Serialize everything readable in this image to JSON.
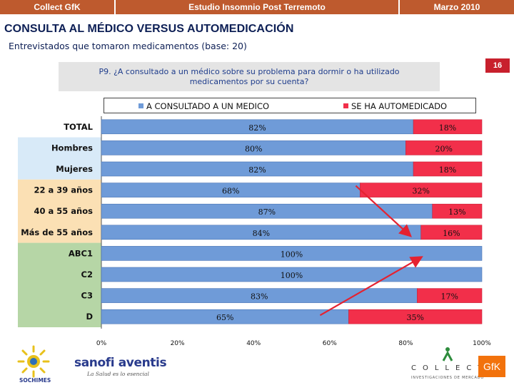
{
  "header": {
    "left": "Collect GfK",
    "center": "Estudio Insomnio Post Terremoto",
    "right": "Marzo 2010"
  },
  "title": "CONSULTA AL MÉDICO VERSUS AUTOMEDICACIÓN",
  "subtitle": "Entrevistados que tomaron medicamentos (base: 20)",
  "page_number": "16",
  "question": {
    "line1": "P9. ¿A consultado a un médico sobre su problema para dormir o ha utilizado",
    "line2": "medicamentos por su cuenta?"
  },
  "colors": {
    "header_bg": "#be5a2e",
    "page_num_bg": "#c8202d",
    "series_blue": "#6f9bd8",
    "series_red": "#f22f4a",
    "band_total": "#ffffff",
    "band_gender": "#d8eaf8",
    "band_age": "#fbe0b4",
    "band_nse": "#b6d6a6"
  },
  "chart_data": {
    "type": "bar",
    "orientation": "horizontal",
    "stacked": true,
    "categories": [
      "TOTAL",
      "Hombres",
      "Mujeres",
      "22 a 39 años",
      "40 a 55 años",
      "Más de 55  años",
      "ABC1",
      "C2",
      "C3",
      "D"
    ],
    "category_groups": [
      "total",
      "gender",
      "gender",
      "age",
      "age",
      "age",
      "nse",
      "nse",
      "nse",
      "nse"
    ],
    "series": [
      {
        "name": "A CONSULTADO A UN MEDICO",
        "values": [
          82,
          80,
          82,
          68,
          87,
          84,
          100,
          100,
          83,
          65
        ],
        "labels": [
          "82%",
          "80%",
          "82%",
          "68%",
          "87%",
          "84%",
          "100%",
          "100%",
          "83%",
          "65%"
        ]
      },
      {
        "name": "SE HA AUTOMEDICADO",
        "values": [
          18,
          20,
          18,
          32,
          13,
          16,
          0,
          0,
          17,
          35
        ],
        "labels": [
          "18%",
          "20%",
          "18%",
          "32%",
          "13%",
          "16%",
          "",
          "",
          "17%",
          "35%"
        ]
      }
    ],
    "xlim": [
      0,
      100
    ],
    "xticks": [
      0,
      20,
      40,
      60,
      80,
      100
    ],
    "xtick_labels": [
      "0%",
      "20%",
      "40%",
      "60%",
      "80%",
      "100%"
    ],
    "legend_position": "top",
    "annotations": [
      "red arrow from 22 a 39 años to Más de 55  años",
      "red arrow from D to ABC1"
    ]
  },
  "logos": {
    "sochimes": "SOCHIMES",
    "sanofi": "sanofi aventis",
    "sanofi_tag": "La Salud es lo esencial",
    "collect": "COLLECT",
    "collect_tag": "INVESTIGACIONES DE MERCADO",
    "gfk": "GfK"
  }
}
